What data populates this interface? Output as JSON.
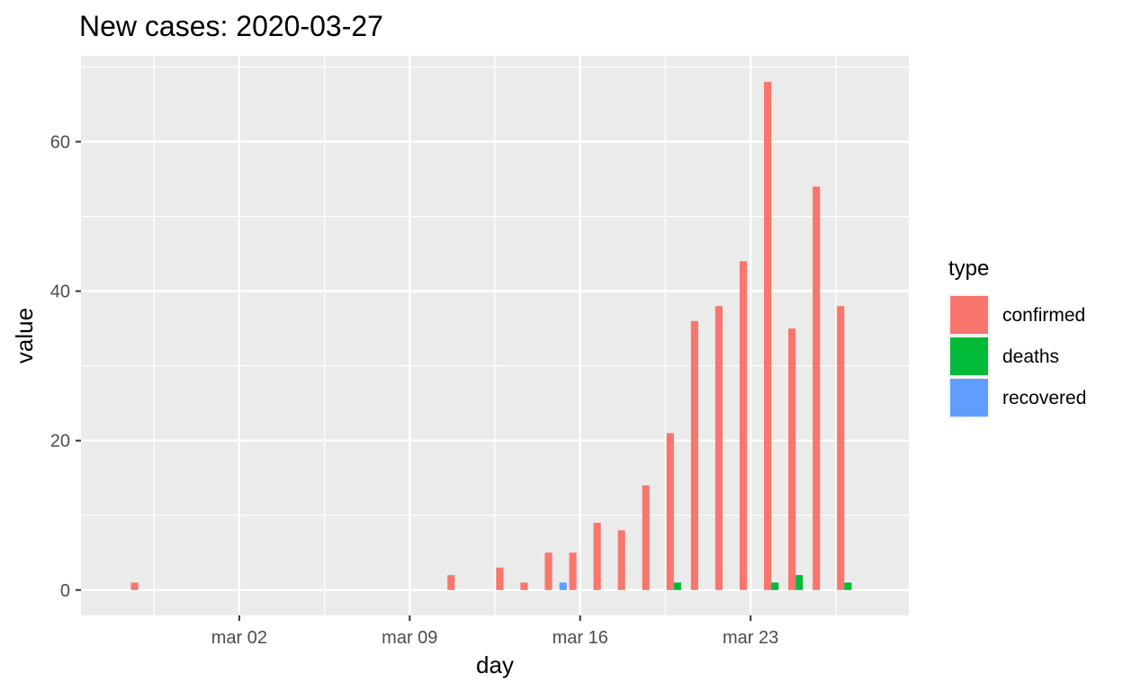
{
  "chart_data": {
    "type": "bar",
    "title": "New cases: 2020-03-27",
    "xlabel": "day",
    "ylabel": "value",
    "x_ticks": [
      {
        "date": "2020-03-02",
        "label": "mar 02"
      },
      {
        "date": "2020-03-09",
        "label": "mar 09"
      },
      {
        "date": "2020-03-16",
        "label": "mar 16"
      },
      {
        "date": "2020-03-23",
        "label": "mar 23"
      }
    ],
    "y_ticks": [
      0,
      20,
      40,
      60
    ],
    "ylim": [
      -3.4,
      71.5
    ],
    "xlim": [
      "2020-02-25",
      "2020-03-29"
    ],
    "grid": true,
    "legend": {
      "title": "type",
      "placement": "right",
      "items": [
        {
          "name": "confirmed",
          "color": "#F8766D"
        },
        {
          "name": "deaths",
          "color": "#00BA38"
        },
        {
          "name": "recovered",
          "color": "#619CFF"
        }
      ]
    },
    "series": [
      {
        "name": "confirmed",
        "color": "#F8766D",
        "points": [
          {
            "x": "2020-02-27",
            "y": 1
          },
          {
            "x": "2020-03-11",
            "y": 2
          },
          {
            "x": "2020-03-13",
            "y": 3
          },
          {
            "x": "2020-03-14",
            "y": 1
          },
          {
            "x": "2020-03-15",
            "y": 5
          },
          {
            "x": "2020-03-16",
            "y": 5
          },
          {
            "x": "2020-03-17",
            "y": 9
          },
          {
            "x": "2020-03-18",
            "y": 8
          },
          {
            "x": "2020-03-19",
            "y": 14
          },
          {
            "x": "2020-03-20",
            "y": 21
          },
          {
            "x": "2020-03-21",
            "y": 36
          },
          {
            "x": "2020-03-22",
            "y": 38
          },
          {
            "x": "2020-03-23",
            "y": 44
          },
          {
            "x": "2020-03-24",
            "y": 68
          },
          {
            "x": "2020-03-25",
            "y": 35
          },
          {
            "x": "2020-03-26",
            "y": 54
          },
          {
            "x": "2020-03-27",
            "y": 38
          }
        ]
      },
      {
        "name": "deaths",
        "color": "#00BA38",
        "points": [
          {
            "x": "2020-03-20",
            "y": 1
          },
          {
            "x": "2020-03-24",
            "y": 1
          },
          {
            "x": "2020-03-25",
            "y": 2
          },
          {
            "x": "2020-03-27",
            "y": 1
          }
        ]
      },
      {
        "name": "recovered",
        "color": "#619CFF",
        "points": [
          {
            "x": "2020-03-15",
            "y": 1
          }
        ]
      }
    ]
  }
}
